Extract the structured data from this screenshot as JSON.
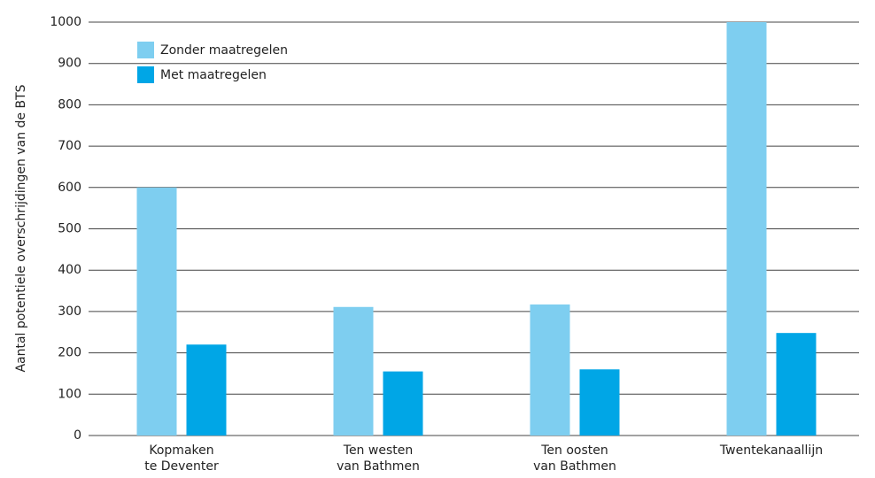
{
  "chart_data": {
    "type": "bar",
    "ylabel": "Aantal potentiele overschrijdingen van de BTS",
    "categories": [
      "Kopmaken\nte Deventer",
      "Ten westen\nvan Bathmen",
      "Ten oosten\nvan Bathmen",
      "Twentekanaallijn"
    ],
    "series": [
      {
        "name": "Zonder maatregelen",
        "color": "#7ecef0",
        "values": [
          600,
          311,
          317,
          1000
        ]
      },
      {
        "name": "Met maatregelen",
        "color": "#00a6e6",
        "values": [
          220,
          155,
          160,
          248
        ]
      }
    ],
    "ylim": [
      0,
      1000
    ],
    "yticks": [
      0,
      100,
      200,
      300,
      400,
      500,
      600,
      700,
      800,
      900,
      1000
    ],
    "grid": true,
    "legend": "upper-left"
  }
}
